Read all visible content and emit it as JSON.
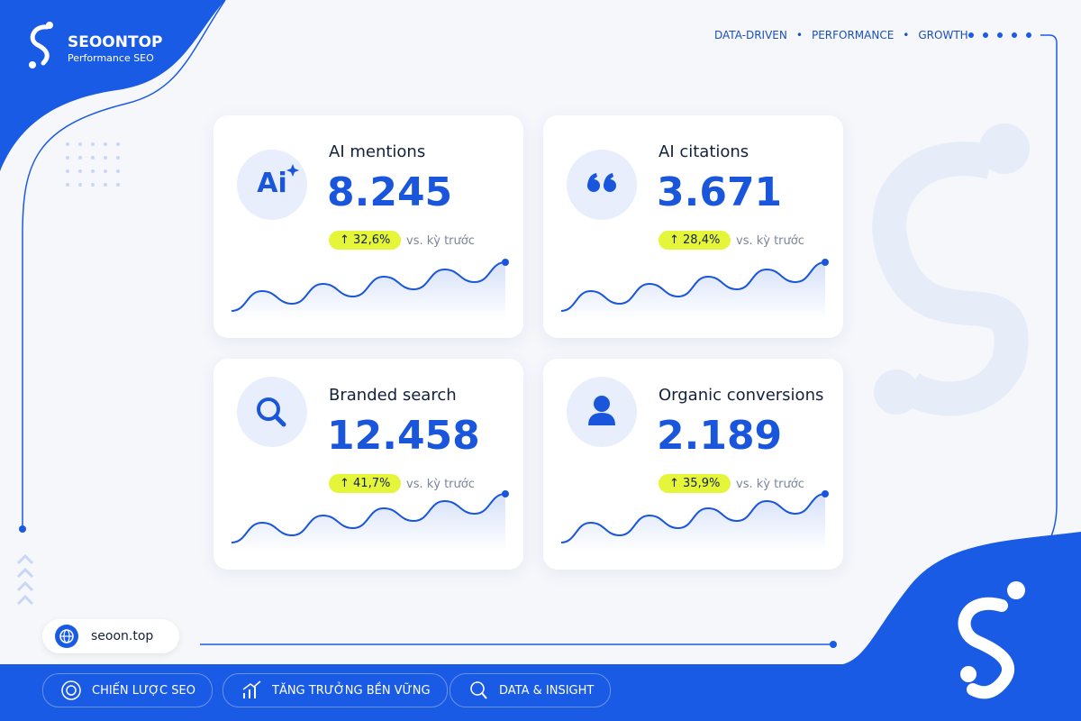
{
  "brand": {
    "name": "SEOONTOP",
    "subtitle": "Performance SEO"
  },
  "tagline": [
    "DATA-DRIVEN",
    "PERFORMANCE",
    "GROWTH"
  ],
  "cards": [
    {
      "icon_text": "Ai",
      "title": "AI mentions",
      "value": "8.245",
      "change": "32,6%",
      "note": "vs. kỳ trước"
    },
    {
      "title": "AI citations",
      "value": "3.671",
      "change": "28,4%",
      "note": "vs. kỳ trước"
    },
    {
      "title": "Branded search",
      "value": "12.458",
      "change": "41,7%",
      "note": "vs. kỳ trước"
    },
    {
      "title": "Organic conversions",
      "value": "2.189",
      "change": "35,9%",
      "note": "vs. kỳ trước"
    }
  ],
  "website": "seoon.top",
  "footer": [
    "CHIẾN LƯỢC SEO",
    "TĂNG TRƯỞNG BỀN VỮNG",
    "DATA & INSIGHT"
  ]
}
